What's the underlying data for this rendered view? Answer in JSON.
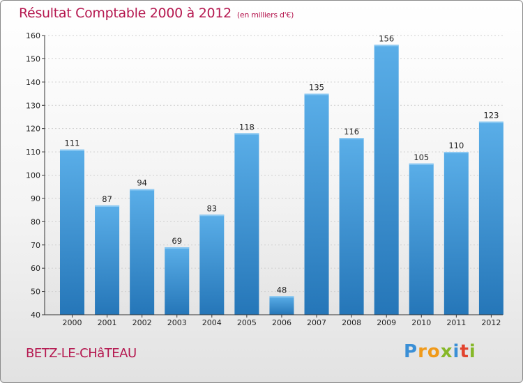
{
  "header": {
    "title": "Résultat Comptable 2000 à 2012",
    "subtitle": "(en milliers d'€)"
  },
  "footer": {
    "commune": "BETZ-LE-CHâTEAU",
    "logo": [
      "P",
      "r",
      "o",
      "x",
      "i",
      "t",
      "i"
    ]
  },
  "colors": {
    "title": "#b5174f",
    "bar_top": "#5aaee8",
    "bar_bottom": "#2576b8",
    "axis": "#333333",
    "grid": "#cfcfcf"
  },
  "chart_data": {
    "type": "bar",
    "title": "Résultat Comptable 2000 à 2012",
    "xlabel": "",
    "ylabel": "",
    "ylim": [
      40,
      160
    ],
    "yticks": [
      40,
      50,
      60,
      70,
      80,
      90,
      100,
      110,
      120,
      130,
      140,
      150,
      160
    ],
    "grid": true,
    "categories": [
      "2000",
      "2001",
      "2002",
      "2003",
      "2004",
      "2005",
      "2006",
      "2007",
      "2008",
      "2009",
      "2010",
      "2011",
      "2012"
    ],
    "values": [
      111,
      87,
      94,
      69,
      83,
      118,
      48,
      135,
      116,
      156,
      105,
      110,
      123
    ]
  }
}
